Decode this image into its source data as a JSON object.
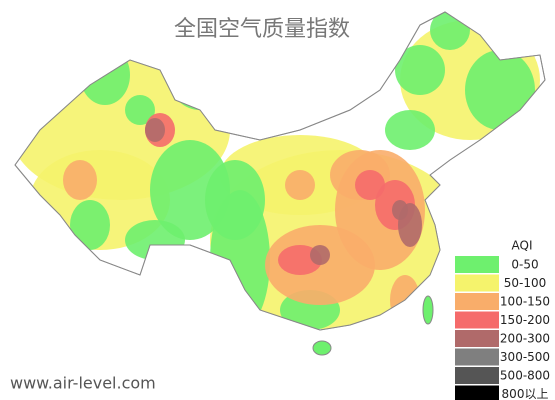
{
  "title": "全国空气质量指数",
  "legend": {
    "title": "AQI",
    "items": [
      {
        "label": "0-50",
        "color": "#6ef06e"
      },
      {
        "label": "50-100",
        "color": "#f5f36c"
      },
      {
        "label": "100-150",
        "color": "#f9ad6a"
      },
      {
        "label": "150-200",
        "color": "#f56b6b"
      },
      {
        "label": "200-300",
        "color": "#b06a6a"
      },
      {
        "label": "300-500",
        "color": "#7f7f7f"
      },
      {
        "label": "500-800",
        "color": "#555555"
      },
      {
        "label": "800以上",
        "color": "#000000"
      }
    ]
  },
  "footer": "www.air-level.com"
}
